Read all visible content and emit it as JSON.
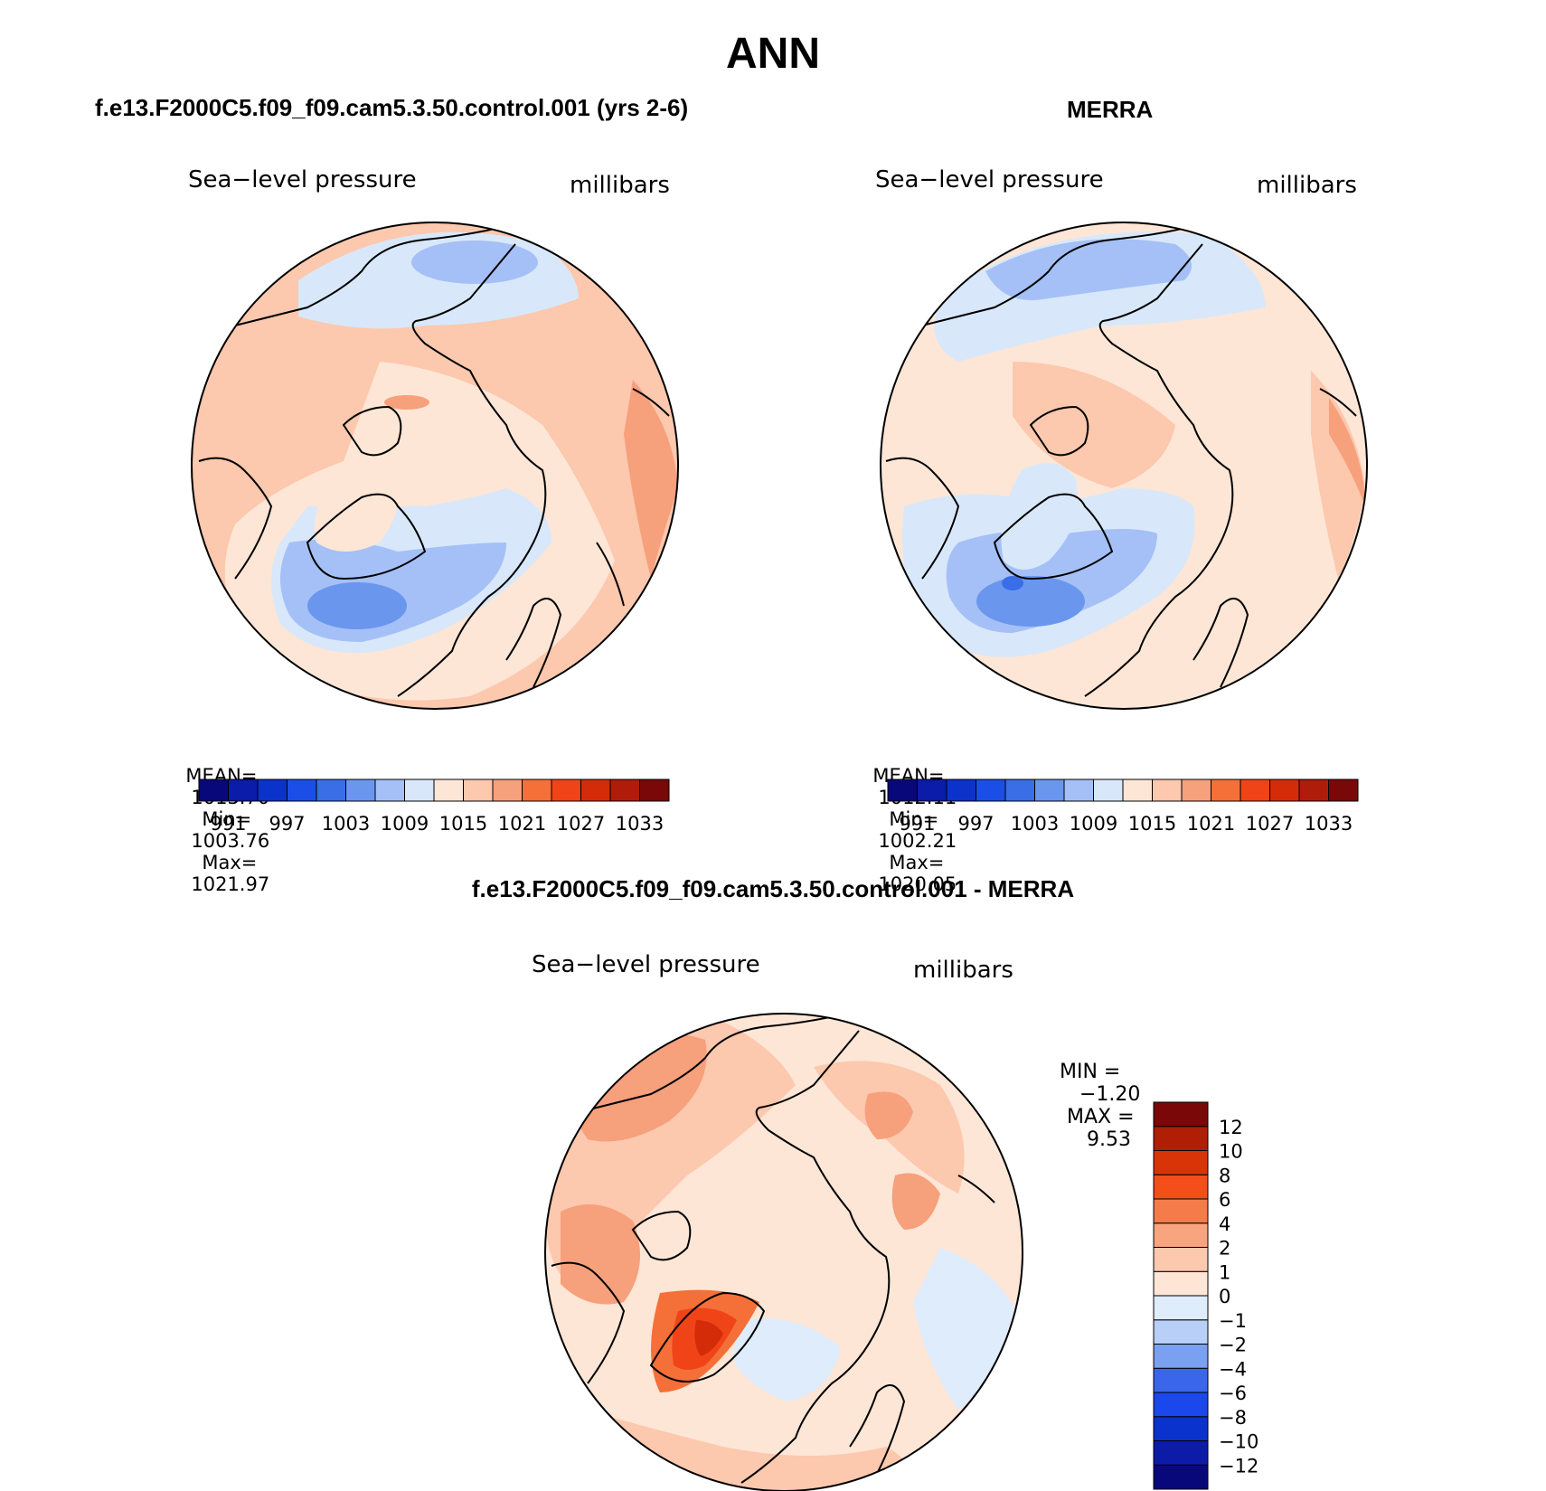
{
  "main_title": "ANN",
  "panels": [
    {
      "title": "f.e13.F2000C5.f09_f09.cam5.3.50.control.001 (yrs 2-6)",
      "left_label": "Sea−level pressure",
      "right_label": "millibars",
      "stats": {
        "mean_label": "MEAN=",
        "mean": "1013.70",
        "min_label": "Min=",
        "min": "1003.76",
        "max_label": "Max=",
        "max": "1021.97"
      }
    },
    {
      "title": "MERRA",
      "left_label": "Sea−level pressure",
      "right_label": "millibars",
      "stats": {
        "mean_label": "MEAN=",
        "mean": "1012.11",
        "min_label": "Min=",
        "min": "1002.21",
        "max_label": "Max=",
        "max": "1020.05"
      }
    },
    {
      "title": "f.e13.F2000C5.f09_f09.cam5.3.50.control.001 - MERRA",
      "left_label": "Sea−level pressure",
      "right_label": "millibars",
      "stats": {
        "min_label": "MIN =",
        "min": "−1.20",
        "max_label": "MAX =",
        "max": "9.53"
      }
    }
  ],
  "colorbar_abs": {
    "colors": [
      "#08087a",
      "#0a1ca8",
      "#0c32cc",
      "#1a4ee6",
      "#3a6ee6",
      "#6a96ee",
      "#a4c0f6",
      "#d8e8fa",
      "#fde6d6",
      "#fcc8ae",
      "#f6a07c",
      "#f47038",
      "#f04418",
      "#d42c08",
      "#b01c0a",
      "#7a0808"
    ],
    "labels": [
      "991",
      "997",
      "1003",
      "1009",
      "1015",
      "1021",
      "1027",
      "1033"
    ]
  },
  "colorbar_diff": {
    "colors": [
      "#08087a",
      "#0c1ca8",
      "#0a32cc",
      "#1a48ec",
      "#3a66ec",
      "#7aa0f0",
      "#b8d0f8",
      "#dfecfc",
      "#fde6d6",
      "#fcc8ae",
      "#f8a47e",
      "#f47c4a",
      "#f44e1a",
      "#d83408",
      "#b01e06",
      "#7a0808"
    ],
    "labels": [
      "12",
      "10",
      "8",
      "6",
      "4",
      "2",
      "1",
      "0",
      "−1",
      "−2",
      "−4",
      "−6",
      "−8",
      "−10",
      "−12"
    ]
  },
  "map_colors": {
    "outline": "#000000",
    "coast": "#000000"
  }
}
